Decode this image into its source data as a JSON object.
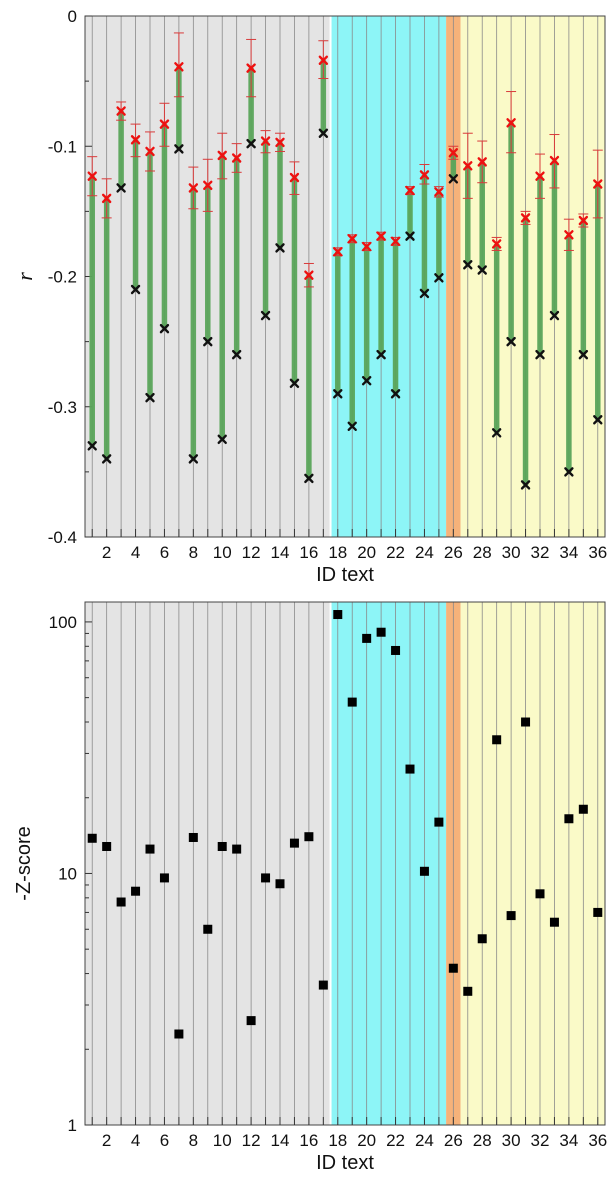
{
  "chart_data": [
    {
      "type": "scatter",
      "xlabel": "ID text",
      "ylabel": "r",
      "ylim": [
        -0.4,
        0
      ],
      "xlim": [
        0.5,
        36.5
      ],
      "y_ticks": [
        0,
        -0.1,
        -0.2,
        -0.3,
        -0.4
      ],
      "y_tick_labels": [
        "0",
        "-0.1",
        "-0.2",
        "-0.3",
        "-0.4"
      ],
      "x_ticks": [
        2,
        4,
        6,
        8,
        10,
        12,
        14,
        16,
        18,
        20,
        22,
        24,
        26,
        28,
        30,
        32,
        34,
        36
      ],
      "x_tick_labels": [
        "2",
        "4",
        "6",
        "8",
        "10",
        "12",
        "14",
        "16",
        "18",
        "20",
        "22",
        "24",
        "26",
        "28",
        "30",
        "32",
        "34",
        "36"
      ],
      "grid": "vertical lines at each ID",
      "regions": [
        {
          "from": 0.5,
          "to": 17.5,
          "color": "#e4e4e4"
        },
        {
          "from": 17.5,
          "to": 25.5,
          "color": "#8df5f7"
        },
        {
          "from": 25.5,
          "to": 26.5,
          "color": "#f5b27a"
        },
        {
          "from": 26.5,
          "to": 36.5,
          "color": "#fafac8"
        }
      ],
      "colors": {
        "range_bar": "#5aa55a",
        "red_marker": "#ee1111",
        "error_bar": "#d83a3a",
        "black_marker": "#111111"
      },
      "x": [
        1,
        2,
        3,
        4,
        5,
        6,
        7,
        8,
        9,
        10,
        11,
        12,
        13,
        14,
        15,
        16,
        17,
        18,
        19,
        20,
        21,
        22,
        23,
        24,
        25,
        26,
        27,
        28,
        29,
        30,
        31,
        32,
        33,
        34,
        35,
        36
      ],
      "series": [
        {
          "marker": "red-x",
          "values": [
            -0.123,
            -0.14,
            -0.073,
            -0.095,
            -0.104,
            -0.083,
            -0.039,
            -0.132,
            -0.13,
            -0.107,
            -0.109,
            -0.04,
            -0.096,
            -0.097,
            -0.124,
            -0.199,
            -0.034,
            -0.181,
            -0.171,
            -0.177,
            -0.169,
            -0.173,
            -0.134,
            -0.122,
            -0.135,
            -0.105,
            -0.115,
            -0.112,
            -0.175,
            -0.082,
            -0.155,
            -0.123,
            -0.111,
            -0.168,
            -0.157,
            -0.129
          ],
          "err_low": [
            -0.138,
            -0.155,
            -0.08,
            -0.108,
            -0.119,
            -0.1,
            -0.062,
            -0.148,
            -0.15,
            -0.125,
            -0.12,
            -0.062,
            -0.105,
            -0.104,
            -0.137,
            -0.208,
            -0.048,
            -0.184,
            -0.174,
            -0.18,
            -0.172,
            -0.176,
            -0.137,
            -0.129,
            -0.139,
            -0.11,
            -0.14,
            -0.128,
            -0.18,
            -0.105,
            -0.16,
            -0.14,
            -0.132,
            -0.18,
            -0.162,
            -0.155
          ],
          "err_high": [
            -0.108,
            -0.125,
            -0.066,
            -0.083,
            -0.089,
            -0.067,
            -0.013,
            -0.116,
            -0.11,
            -0.09,
            -0.098,
            -0.018,
            -0.088,
            -0.09,
            -0.112,
            -0.19,
            -0.019,
            -0.178,
            -0.168,
            -0.174,
            -0.166,
            -0.17,
            -0.131,
            -0.114,
            -0.131,
            -0.1,
            -0.09,
            -0.096,
            -0.17,
            -0.058,
            -0.15,
            -0.106,
            -0.091,
            -0.156,
            -0.152,
            -0.103
          ]
        },
        {
          "marker": "black-x",
          "values": [
            -0.33,
            -0.34,
            -0.132,
            -0.21,
            -0.293,
            -0.24,
            -0.102,
            -0.34,
            -0.25,
            -0.325,
            -0.26,
            -0.098,
            -0.23,
            -0.178,
            -0.282,
            -0.355,
            -0.09,
            -0.29,
            -0.315,
            -0.28,
            -0.26,
            -0.29,
            -0.169,
            -0.213,
            -0.201,
            -0.125,
            -0.191,
            -0.195,
            -0.32,
            -0.25,
            -0.36,
            -0.26,
            -0.23,
            -0.35,
            -0.26,
            -0.31
          ]
        }
      ]
    },
    {
      "type": "scatter",
      "xlabel": "ID text",
      "ylabel": "-Z-score",
      "yscale": "log",
      "ylim": [
        1,
        120
      ],
      "xlim": [
        0.5,
        36.5
      ],
      "y_ticks": [
        1,
        10,
        100
      ],
      "y_tick_labels": [
        "1",
        "10",
        "100"
      ],
      "x_ticks": [
        2,
        4,
        6,
        8,
        10,
        12,
        14,
        16,
        18,
        20,
        22,
        24,
        26,
        28,
        30,
        32,
        34,
        36
      ],
      "x_tick_labels": [
        "2",
        "4",
        "6",
        "8",
        "10",
        "12",
        "14",
        "16",
        "18",
        "20",
        "22",
        "24",
        "26",
        "28",
        "30",
        "32",
        "34",
        "36"
      ],
      "grid": "vertical lines at each ID",
      "regions": [
        {
          "from": 0.5,
          "to": 17.5,
          "color": "#e4e4e4"
        },
        {
          "from": 17.5,
          "to": 25.5,
          "color": "#8df5f7"
        },
        {
          "from": 25.5,
          "to": 26.5,
          "color": "#f5b27a"
        },
        {
          "from": 26.5,
          "to": 36.5,
          "color": "#fafac8"
        }
      ],
      "colors": {
        "marker": "#000000"
      },
      "x": [
        1,
        2,
        3,
        4,
        5,
        6,
        7,
        8,
        9,
        10,
        11,
        12,
        13,
        14,
        15,
        16,
        17,
        18,
        19,
        20,
        21,
        22,
        23,
        24,
        25,
        26,
        27,
        28,
        29,
        30,
        31,
        32,
        33,
        34,
        35,
        36
      ],
      "values": [
        13.8,
        12.8,
        7.7,
        8.5,
        12.5,
        9.6,
        2.3,
        13.9,
        6.0,
        12.8,
        12.5,
        2.6,
        9.6,
        9.1,
        13.2,
        14.0,
        3.6,
        107,
        48,
        86,
        91,
        77,
        26,
        10.2,
        16,
        4.2,
        3.4,
        5.5,
        34,
        6.8,
        40,
        8.3,
        6.4,
        16.5,
        18,
        7.0
      ]
    }
  ]
}
